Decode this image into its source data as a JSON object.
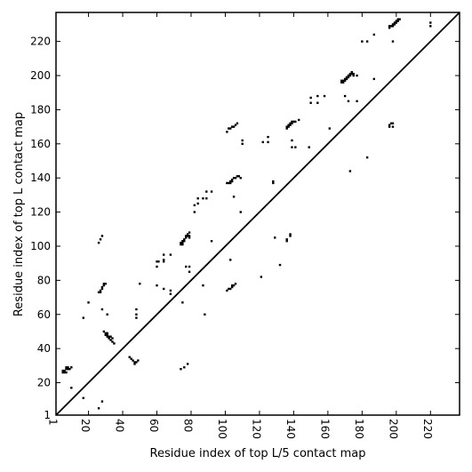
{
  "chart_data": {
    "type": "scatter",
    "title": "",
    "xlabel": "Residue index of top L/5 contact map",
    "ylabel": "Residue index of top L contact map",
    "xlim": [
      1,
      237
    ],
    "ylim": [
      1,
      237
    ],
    "x_ticks": [
      1,
      20,
      40,
      60,
      80,
      100,
      120,
      140,
      160,
      180,
      200,
      220
    ],
    "x_tick_labels": [
      "1",
      "20",
      "40",
      "60",
      "80",
      "100",
      "120",
      "140",
      "160",
      "180",
      "200",
      "220"
    ],
    "y_ticks": [
      1,
      20,
      40,
      60,
      80,
      100,
      120,
      140,
      160,
      180,
      200,
      220
    ],
    "y_tick_labels": [
      "1",
      "20",
      "40",
      "60",
      "80",
      "100",
      "120",
      "140",
      "160",
      "180",
      "200",
      "220"
    ],
    "grid": false,
    "diagonal": true,
    "marker_color": "#000000",
    "series": [
      {
        "name": "",
        "points": [
          [
            5,
            26
          ],
          [
            5,
            27
          ],
          [
            6,
            26
          ],
          [
            6,
            27
          ],
          [
            7,
            26
          ],
          [
            7,
            28
          ],
          [
            7,
            29
          ],
          [
            8,
            28
          ],
          [
            8,
            29
          ],
          [
            9,
            28
          ],
          [
            10,
            29
          ],
          [
            10,
            17
          ],
          [
            17,
            11
          ],
          [
            17,
            58
          ],
          [
            20,
            67
          ],
          [
            26,
            73
          ],
          [
            27,
            73
          ],
          [
            27,
            74
          ],
          [
            28,
            75
          ],
          [
            28,
            76
          ],
          [
            29,
            77
          ],
          [
            29,
            78
          ],
          [
            30,
            78
          ],
          [
            26,
            102
          ],
          [
            27,
            104
          ],
          [
            28,
            106
          ],
          [
            29,
            50
          ],
          [
            30,
            48
          ],
          [
            30,
            49
          ],
          [
            31,
            47
          ],
          [
            31,
            48
          ],
          [
            31,
            49
          ],
          [
            32,
            46
          ],
          [
            32,
            47
          ],
          [
            33,
            47
          ],
          [
            33,
            45
          ],
          [
            34,
            44
          ],
          [
            34,
            46
          ],
          [
            35,
            43
          ],
          [
            28,
            63
          ],
          [
            31,
            60
          ],
          [
            26,
            5
          ],
          [
            28,
            9
          ],
          [
            44,
            35
          ],
          [
            45,
            34
          ],
          [
            46,
            33
          ],
          [
            47,
            32
          ],
          [
            47,
            31
          ],
          [
            48,
            32
          ],
          [
            49,
            33
          ],
          [
            48,
            63
          ],
          [
            48,
            60
          ],
          [
            48,
            58
          ],
          [
            50,
            78
          ],
          [
            60,
            88
          ],
          [
            60,
            91
          ],
          [
            61,
            91
          ],
          [
            64,
            91
          ],
          [
            64,
            92
          ],
          [
            64,
            95
          ],
          [
            68,
            95
          ],
          [
            60,
            77
          ],
          [
            64,
            75
          ],
          [
            68,
            74
          ],
          [
            68,
            72
          ],
          [
            74,
            101
          ],
          [
            74,
            102
          ],
          [
            75,
            101
          ],
          [
            75,
            102
          ],
          [
            75,
            103
          ],
          [
            76,
            103
          ],
          [
            76,
            104
          ],
          [
            77,
            105
          ],
          [
            77,
            106
          ],
          [
            78,
            106
          ],
          [
            78,
            107
          ],
          [
            79,
            105
          ],
          [
            79,
            106
          ],
          [
            79,
            108
          ],
          [
            75,
            67
          ],
          [
            77,
            88
          ],
          [
            79,
            88
          ],
          [
            79,
            85
          ],
          [
            74,
            28
          ],
          [
            76,
            29
          ],
          [
            78,
            31
          ],
          [
            82,
            120
          ],
          [
            82,
            124
          ],
          [
            84,
            125
          ],
          [
            84,
            128
          ],
          [
            87,
            128
          ],
          [
            89,
            128
          ],
          [
            89,
            132
          ],
          [
            92,
            132
          ],
          [
            87,
            77
          ],
          [
            88,
            60
          ],
          [
            92,
            103
          ],
          [
            101,
            74
          ],
          [
            102,
            75
          ],
          [
            103,
            75
          ],
          [
            104,
            76
          ],
          [
            104,
            77
          ],
          [
            105,
            77
          ],
          [
            106,
            78
          ],
          [
            103,
            92
          ],
          [
            101,
            167
          ],
          [
            102,
            169
          ],
          [
            103,
            169
          ],
          [
            104,
            170
          ],
          [
            105,
            170
          ],
          [
            106,
            171
          ],
          [
            107,
            172
          ],
          [
            101,
            137
          ],
          [
            102,
            137
          ],
          [
            103,
            137
          ],
          [
            103,
            138
          ],
          [
            104,
            138
          ],
          [
            104,
            139
          ],
          [
            105,
            140
          ],
          [
            106,
            140
          ],
          [
            107,
            141
          ],
          [
            108,
            141
          ],
          [
            109,
            140
          ],
          [
            105,
            129
          ],
          [
            109,
            120
          ],
          [
            110,
            160
          ],
          [
            110,
            162
          ],
          [
            121,
            82
          ],
          [
            122,
            161
          ],
          [
            125,
            161
          ],
          [
            125,
            164
          ],
          [
            128,
            137
          ],
          [
            128,
            138
          ],
          [
            129,
            105
          ],
          [
            132,
            89
          ],
          [
            136,
            103
          ],
          [
            136,
            104
          ],
          [
            138,
            106
          ],
          [
            138,
            107
          ],
          [
            136,
            169
          ],
          [
            136,
            170
          ],
          [
            137,
            170
          ],
          [
            137,
            171
          ],
          [
            138,
            171
          ],
          [
            138,
            172
          ],
          [
            139,
            172
          ],
          [
            139,
            173
          ],
          [
            140,
            173
          ],
          [
            141,
            173
          ],
          [
            143,
            174
          ],
          [
            139,
            162
          ],
          [
            139,
            158
          ],
          [
            141,
            158
          ],
          [
            149,
            158
          ],
          [
            150,
            184
          ],
          [
            150,
            187
          ],
          [
            154,
            184
          ],
          [
            154,
            188
          ],
          [
            158,
            188
          ],
          [
            161,
            169
          ],
          [
            168,
            196
          ],
          [
            168,
            197
          ],
          [
            169,
            196
          ],
          [
            169,
            197
          ],
          [
            170,
            197
          ],
          [
            170,
            198
          ],
          [
            171,
            198
          ],
          [
            171,
            199
          ],
          [
            172,
            199
          ],
          [
            172,
            200
          ],
          [
            173,
            200
          ],
          [
            173,
            201
          ],
          [
            174,
            201
          ],
          [
            174,
            202
          ],
          [
            175,
            201
          ],
          [
            175,
            200
          ],
          [
            177,
            200
          ],
          [
            170,
            188
          ],
          [
            172,
            185
          ],
          [
            177,
            185
          ],
          [
            173,
            144
          ],
          [
            180,
            220
          ],
          [
            183,
            220
          ],
          [
            183,
            152
          ],
          [
            187,
            224
          ],
          [
            187,
            198
          ],
          [
            196,
            228
          ],
          [
            196,
            229
          ],
          [
            197,
            229
          ],
          [
            198,
            229
          ],
          [
            198,
            230
          ],
          [
            199,
            230
          ],
          [
            199,
            231
          ],
          [
            200,
            231
          ],
          [
            200,
            232
          ],
          [
            201,
            232
          ],
          [
            201,
            233
          ],
          [
            202,
            233
          ],
          [
            196,
            170
          ],
          [
            196,
            171
          ],
          [
            197,
            172
          ],
          [
            198,
            172
          ],
          [
            198,
            170
          ],
          [
            198,
            220
          ],
          [
            220,
            229
          ],
          [
            220,
            231
          ]
        ]
      }
    ]
  }
}
